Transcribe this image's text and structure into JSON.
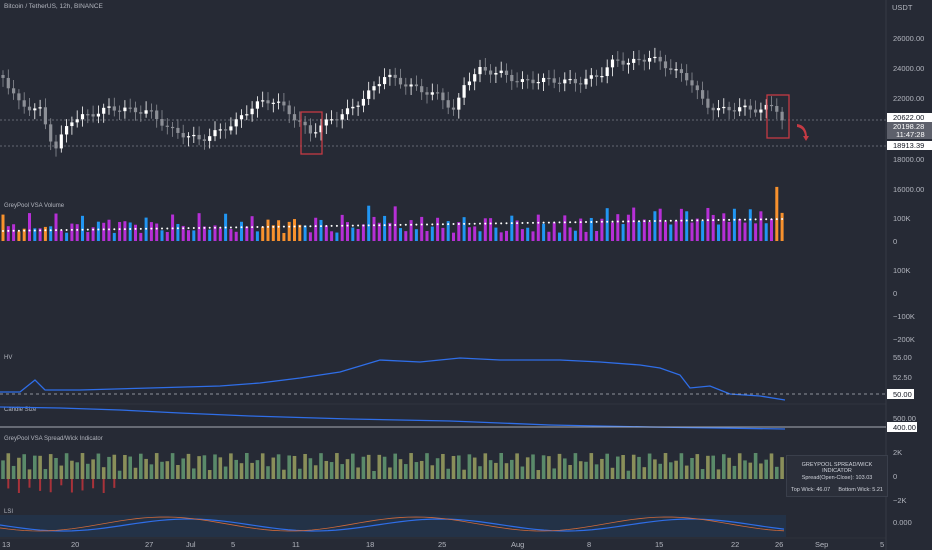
{
  "header": {
    "symbol_title": "Bitcoin / TetherUS, 12h, BINANCE",
    "currency": "USDT"
  },
  "price_axis": {
    "labels": [
      "26000.00",
      "24000.00",
      "22000.00",
      "18000.00",
      "16000.00"
    ],
    "tags": {
      "upper": "20622.00",
      "current": "20198.28",
      "countdown": "11:47:28",
      "lower": "18913.39"
    }
  },
  "panes": {
    "volume": {
      "title": "GreyPool VSA Volume",
      "axis_labels": [
        "100K",
        "0"
      ]
    },
    "oscillator": {
      "axis_labels": [
        "100K",
        "0",
        "−100K",
        "−200K"
      ]
    },
    "hv": {
      "title": "HV",
      "axis_labels": [
        "55.00",
        "52.50"
      ],
      "tag": "50.00"
    },
    "candle_size": {
      "title": "Candle Size",
      "axis_labels": [
        "500.00"
      ],
      "tag": "400.00"
    },
    "spread_wick": {
      "title": "GreyPool VSA Spread/Wick Indicator",
      "axis_labels": [
        "2K",
        "0",
        "−2K"
      ],
      "info_box": {
        "title": "GREYPOOL SPREAD/WICK INDICATOR",
        "spread": "Spread(Open-Close): 103.03",
        "top_wick": "Top Wick: 46.07",
        "bottom_wick": "Bottom Wick: 5.21"
      }
    },
    "lower": {
      "title": "LSI",
      "axis_labels": [
        "0.000"
      ]
    }
  },
  "time_axis": {
    "labels": [
      "13",
      "20",
      "27",
      "Jul",
      "5",
      "11",
      "18",
      "25",
      "Aug",
      "8",
      "15",
      "22",
      "26",
      "Sep",
      "5"
    ]
  },
  "colors": {
    "background": "#262a35",
    "bull": "#ffffff",
    "bear": "#8c8f96",
    "volume_purple": "#b62fd6",
    "volume_blue": "#2196f3",
    "volume_orange": "#f7912d",
    "highlight_red": "#c43a44",
    "hv_line": "#2f6ee8"
  }
}
